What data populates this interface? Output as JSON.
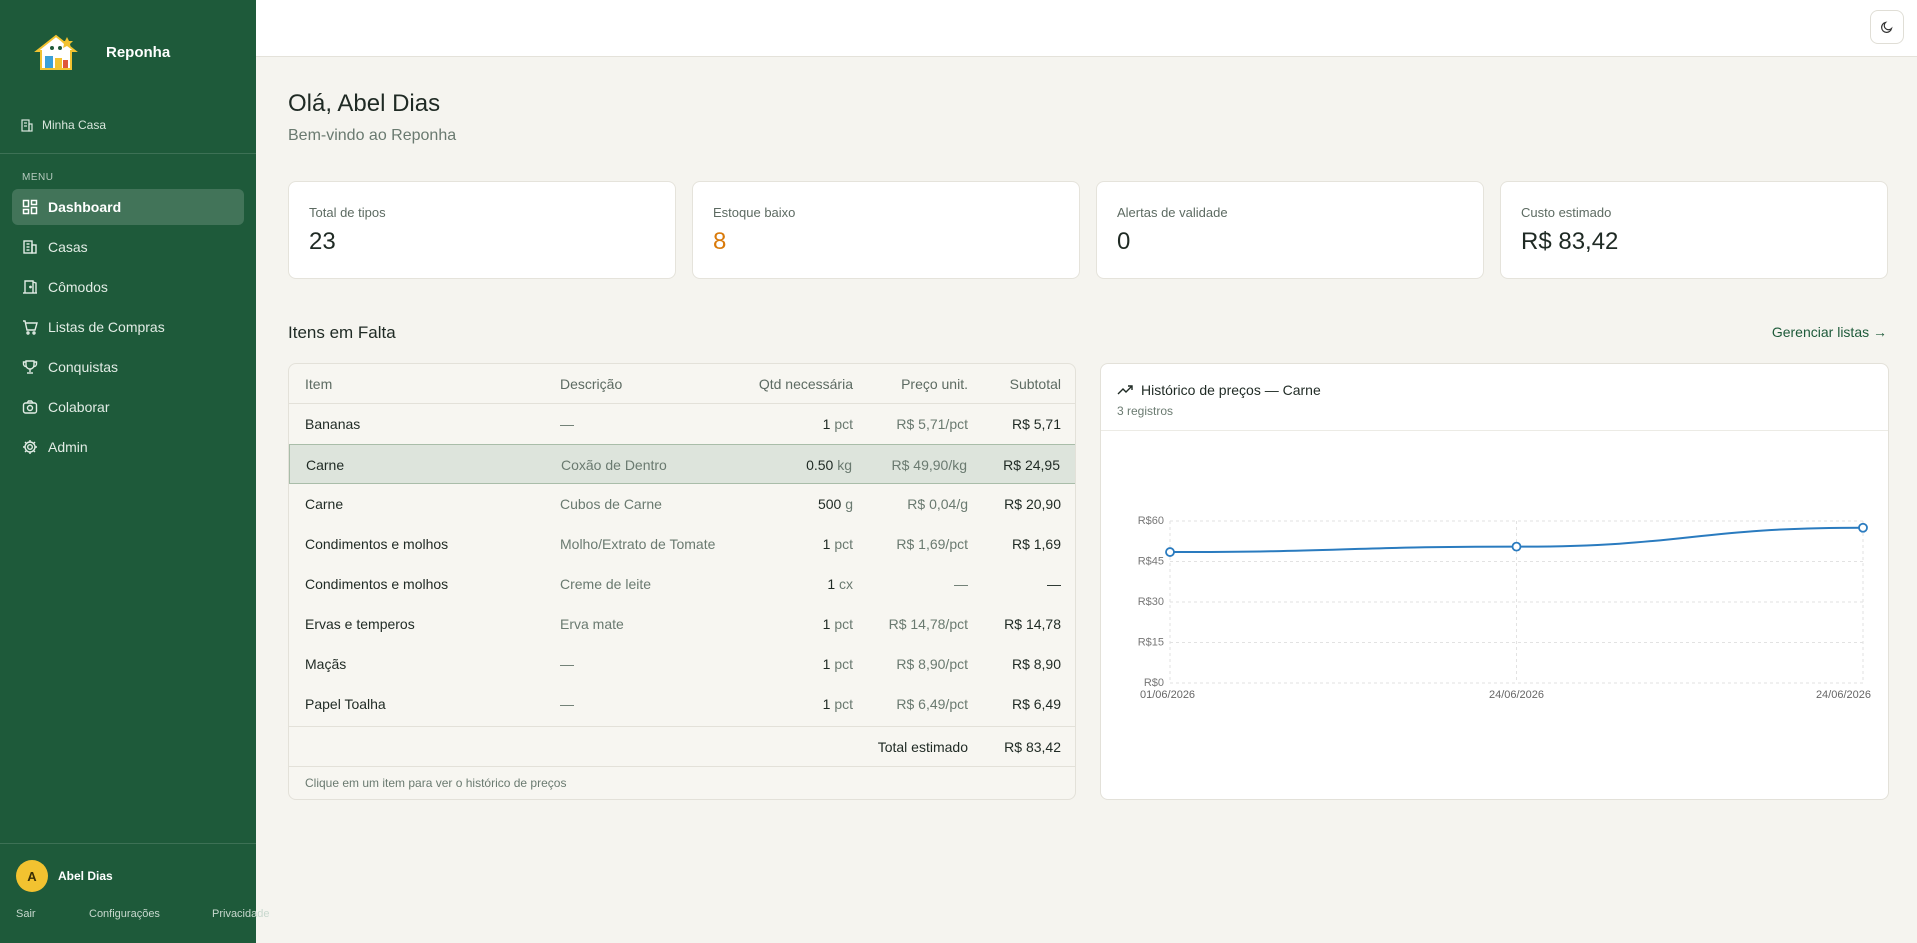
{
  "app": {
    "name": "Reponha",
    "house": "Minha Casa"
  },
  "menu": {
    "title": "MENU",
    "items": [
      {
        "label": "Dashboard",
        "icon": "dashboard-icon",
        "active": true
      },
      {
        "label": "Casas",
        "icon": "building-icon"
      },
      {
        "label": "Cômodos",
        "icon": "door-icon"
      },
      {
        "label": "Listas de Compras",
        "icon": "cart-icon"
      },
      {
        "label": "Conquistas",
        "icon": "trophy-icon"
      },
      {
        "label": "Colaborar",
        "icon": "camera-icon"
      },
      {
        "label": "Admin",
        "icon": "gear-icon"
      }
    ]
  },
  "user": {
    "initial": "A",
    "name": "Abel Dias"
  },
  "footer_links": {
    "logout": "Sair",
    "settings": "Configurações",
    "privacy": "Privacidade"
  },
  "header": {
    "greeting": "Olá, Abel Dias",
    "subtitle": "Bem-vindo ao Reponha"
  },
  "stats": [
    {
      "label": "Total de tipos",
      "value": "23"
    },
    {
      "label": "Estoque baixo",
      "value": "8"
    },
    {
      "label": "Alertas de validade",
      "value": "0"
    },
    {
      "label": "Custo estimado",
      "value": "R$ 83,42"
    }
  ],
  "missing": {
    "title": "Itens em Falta",
    "manage_link": "Gerenciar listas →",
    "columns": {
      "item": "Item",
      "desc": "Descrição",
      "qty": "Qtd necessária",
      "price": "Preço unit.",
      "subtotal": "Subtotal"
    },
    "rows": [
      {
        "item": "Bananas",
        "desc": "—",
        "qty": "1",
        "unit": "pct",
        "price": "R$ 5,71/pct",
        "subtotal": "R$ 5,71"
      },
      {
        "item": "Carne",
        "desc": "Coxão de Dentro",
        "qty": "0.50",
        "unit": "kg",
        "price": "R$ 49,90/kg",
        "subtotal": "R$ 24,95"
      },
      {
        "item": "Carne",
        "desc": "Cubos de Carne",
        "qty": "500",
        "unit": "g",
        "price": "R$ 0,04/g",
        "subtotal": "R$ 20,90"
      },
      {
        "item": "Condimentos e molhos",
        "desc": "Molho/Extrato de Tomate",
        "qty": "1",
        "unit": "pct",
        "price": "R$ 1,69/pct",
        "subtotal": "R$ 1,69"
      },
      {
        "item": "Condimentos e molhos",
        "desc": "Creme de leite",
        "qty": "1",
        "unit": "cx",
        "price": "—",
        "subtotal": "—"
      },
      {
        "item": "Ervas e temperos",
        "desc": "Erva mate",
        "qty": "1",
        "unit": "pct",
        "price": "R$ 14,78/pct",
        "subtotal": "R$ 14,78"
      },
      {
        "item": "Maçãs",
        "desc": "—",
        "qty": "1",
        "unit": "pct",
        "price": "R$ 8,90/pct",
        "subtotal": "R$ 8,90"
      },
      {
        "item": "Papel Toalha",
        "desc": "—",
        "qty": "1",
        "unit": "pct",
        "price": "R$ 6,49/pct",
        "subtotal": "R$ 6,49"
      }
    ],
    "total_label": "Total estimado",
    "total_value": "R$ 83,42",
    "hint": "Clique em um item para ver o histórico de preços"
  },
  "price_history": {
    "title": "Histórico de preços — Carne",
    "subtitle": "3 registros"
  },
  "chart_data": {
    "type": "line",
    "x": [
      "01/06/2026",
      "24/06/2026",
      "24/06/2026"
    ],
    "values": [
      48.5,
      50.5,
      57.5
    ],
    "y_ticks": [
      "R$0",
      "R$15",
      "R$30",
      "R$45",
      "R$60"
    ],
    "ylim": [
      0,
      60
    ],
    "grid": true,
    "color": "#2a7bbf"
  }
}
